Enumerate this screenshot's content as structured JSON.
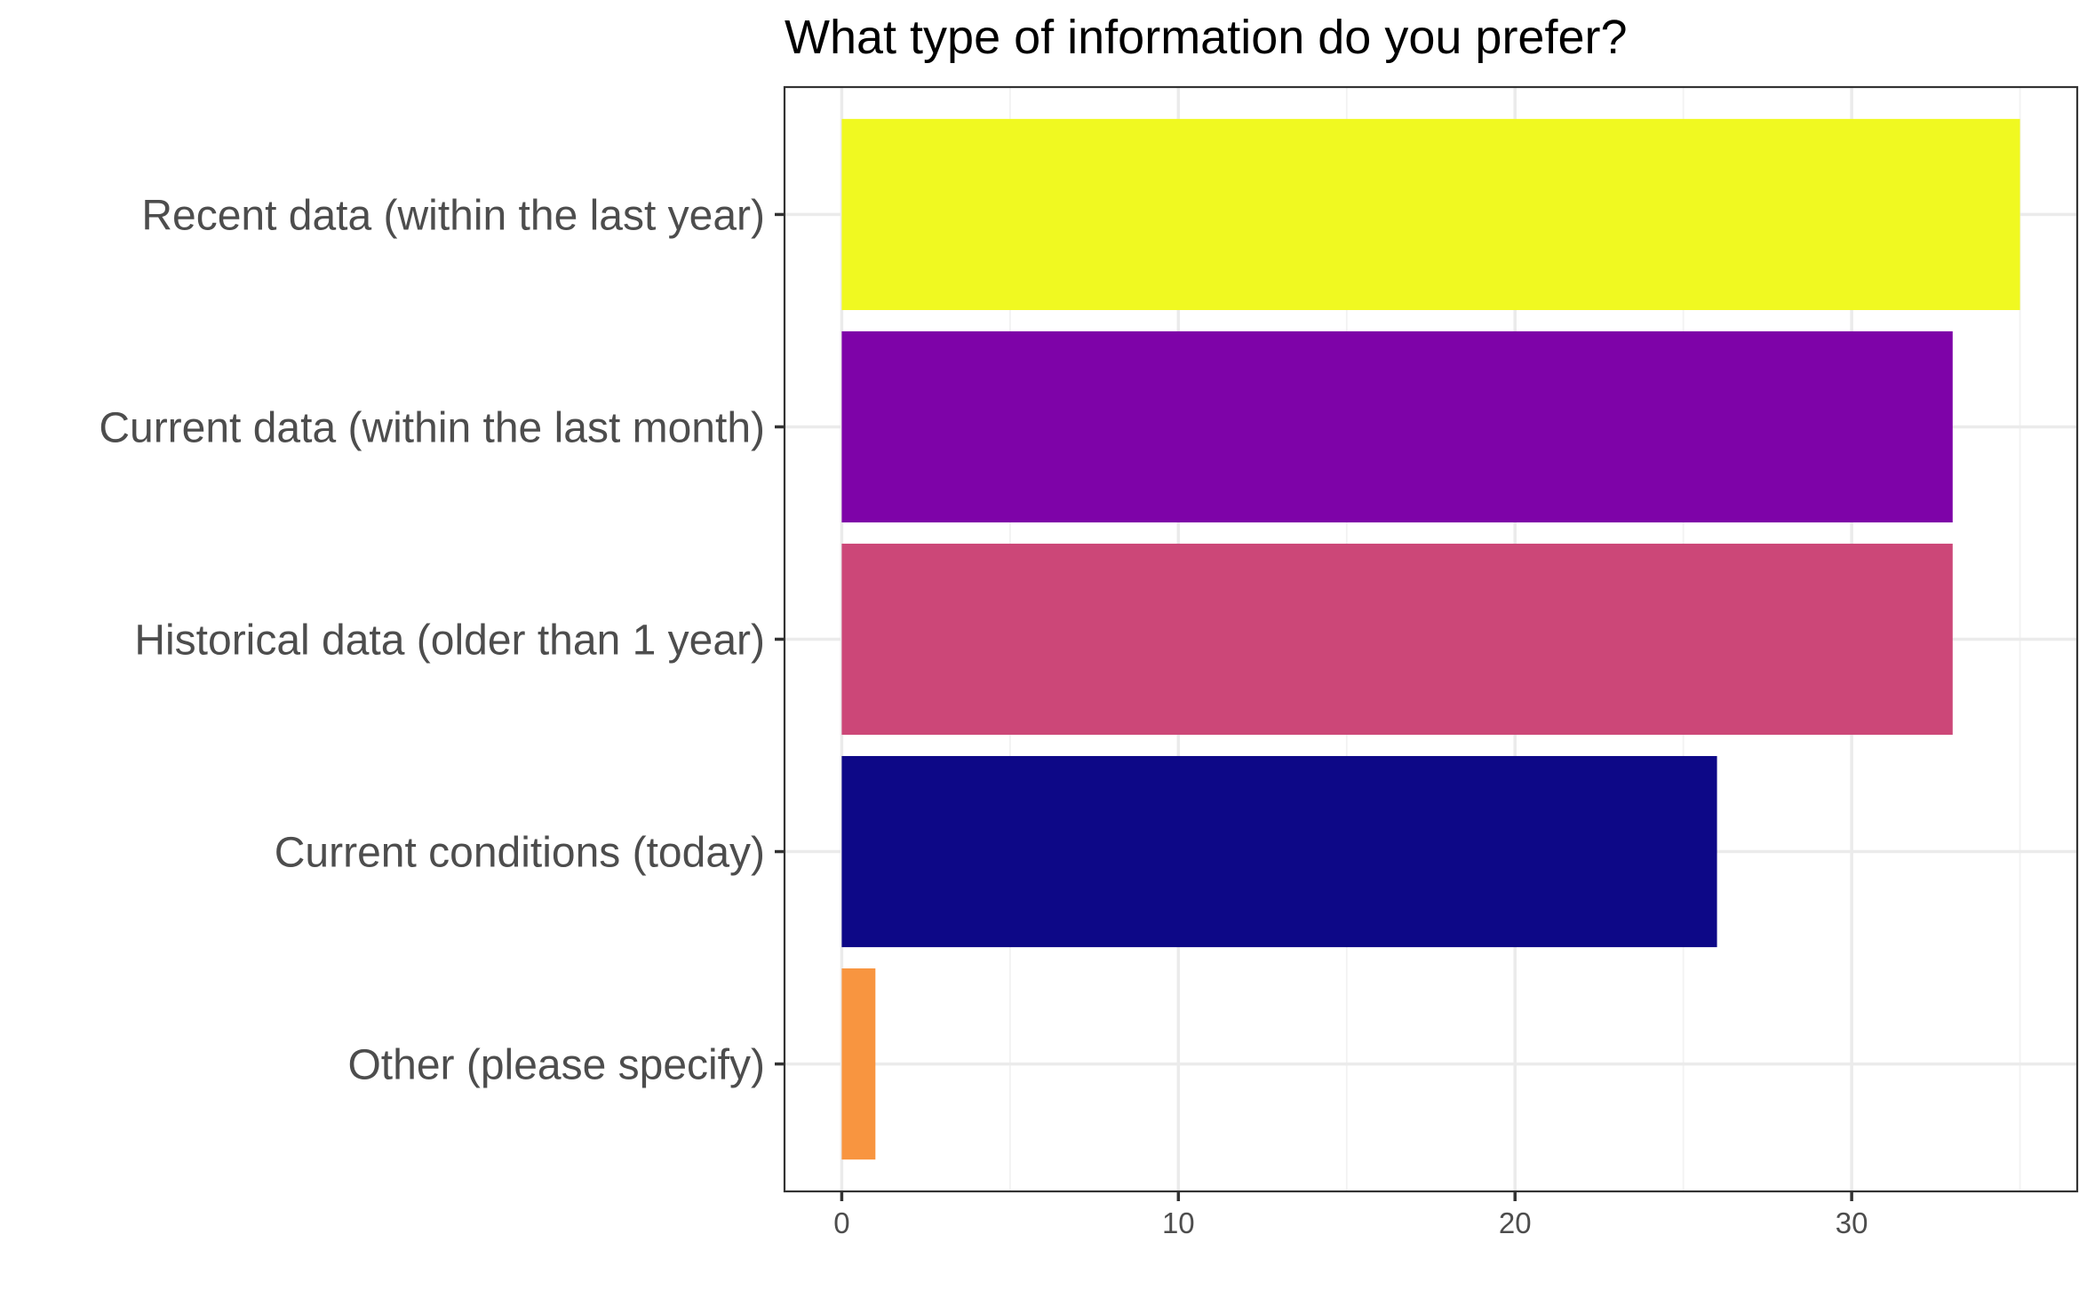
{
  "chart_data": {
    "type": "bar",
    "orientation": "horizontal",
    "title": "What type of information do you prefer?",
    "xlabel": "",
    "ylabel": "",
    "categories": [
      "Recent data (within the last year)",
      "Current data (within the last month)",
      "Historical data (older than 1 year)",
      "Current conditions (today)",
      "Other (please specify)"
    ],
    "values": [
      35,
      33,
      33,
      26,
      1
    ],
    "colors": [
      "#f0f921",
      "#7e03a8",
      "#cc4778",
      "#0d0887",
      "#f89540"
    ],
    "xlim": [
      -1.7,
      36.7
    ],
    "xticks": [
      0,
      10,
      20,
      30
    ],
    "xtick_labels": [
      "0",
      "10",
      "20",
      "30"
    ],
    "grid": true,
    "legend": "none"
  }
}
